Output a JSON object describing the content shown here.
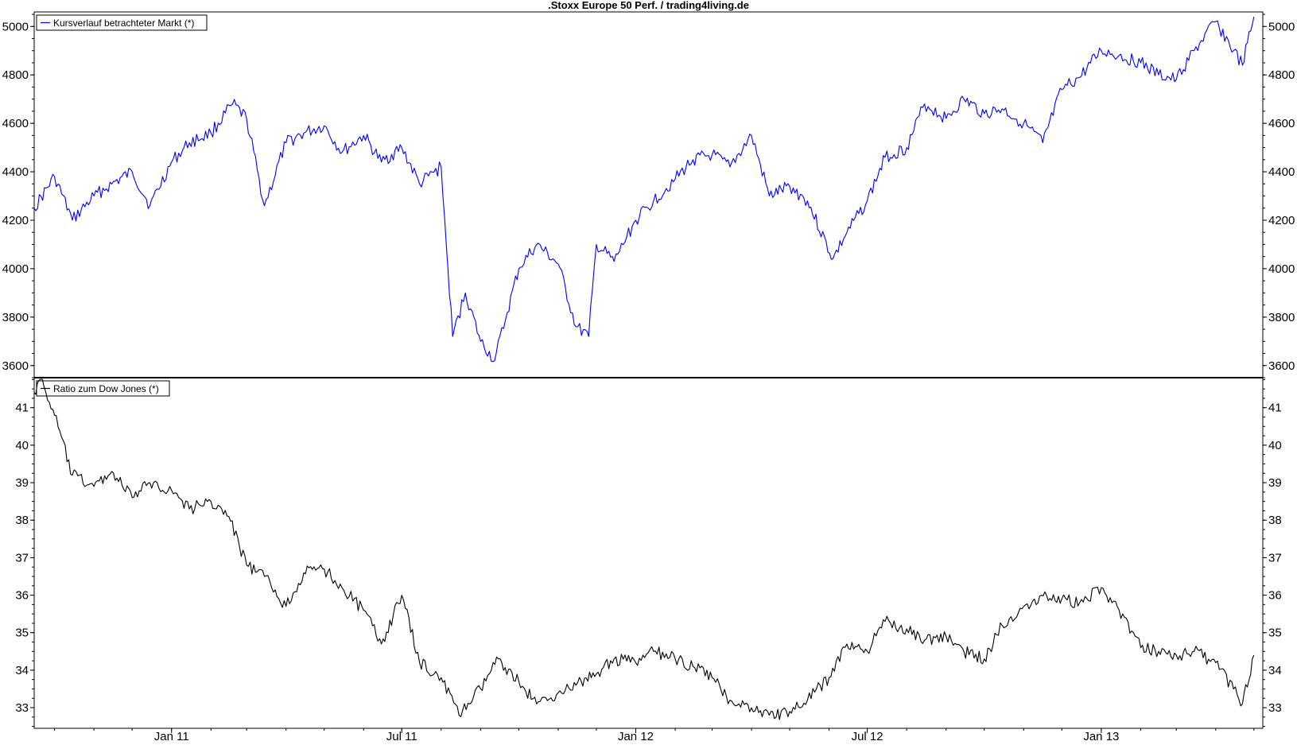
{
  "title": ".Stoxx Europe 50 Perf. / trading4living.de",
  "x_axis": {
    "tick_labels": [
      "Jan 11",
      "Jul 11",
      "Jan 12",
      "Jul 12",
      "Jan 13"
    ]
  },
  "chart_data": [
    {
      "type": "line",
      "legend": "Kursverlauf betrachteter Markt (*)",
      "legend_position": "top-left",
      "color": "#0000ff",
      "y_ticks": [
        3600,
        3800,
        4000,
        4200,
        4400,
        4600,
        4800,
        5000
      ],
      "ylim": [
        3550,
        5060
      ],
      "x": [
        "2010-09-15",
        "2010-10-01",
        "2010-10-15",
        "2010-11-01",
        "2010-11-15",
        "2010-12-01",
        "2010-12-15",
        "2011-01-01",
        "2011-01-15",
        "2011-02-01",
        "2011-02-18",
        "2011-03-01",
        "2011-03-15",
        "2011-04-01",
        "2011-04-15",
        "2011-05-01",
        "2011-05-15",
        "2011-06-01",
        "2011-06-15",
        "2011-07-01",
        "2011-07-15",
        "2011-08-01",
        "2011-08-05",
        "2011-08-10",
        "2011-08-20",
        "2011-09-01",
        "2011-09-12",
        "2011-09-22",
        "2011-10-01",
        "2011-10-15",
        "2011-11-01",
        "2011-11-15",
        "2011-11-25",
        "2011-12-01",
        "2011-12-15",
        "2012-01-01",
        "2012-01-15",
        "2012-02-01",
        "2012-02-15",
        "2012-03-01",
        "2012-03-15",
        "2012-04-01",
        "2012-04-15",
        "2012-05-01",
        "2012-05-15",
        "2012-06-04",
        "2012-06-15",
        "2012-07-01",
        "2012-07-15",
        "2012-08-01",
        "2012-08-15",
        "2012-09-01",
        "2012-09-15",
        "2012-10-01",
        "2012-10-15",
        "2012-11-01",
        "2012-11-16",
        "2012-12-01",
        "2012-12-15",
        "2013-01-01",
        "2013-01-15",
        "2013-02-01",
        "2013-02-15",
        "2013-03-01",
        "2013-03-15",
        "2013-04-01",
        "2013-04-15",
        "2013-04-22",
        "2013-05-01"
      ],
      "y": [
        4250,
        4380,
        4200,
        4300,
        4350,
        4400,
        4260,
        4440,
        4520,
        4560,
        4680,
        4620,
        4260,
        4520,
        4560,
        4590,
        4480,
        4550,
        4440,
        4500,
        4350,
        4420,
        4100,
        3720,
        3900,
        3700,
        3620,
        3820,
        4000,
        4100,
        4020,
        3760,
        3720,
        4100,
        4030,
        4200,
        4280,
        4370,
        4450,
        4470,
        4420,
        4550,
        4300,
        4340,
        4280,
        4040,
        4150,
        4280,
        4460,
        4500,
        4680,
        4620,
        4700,
        4640,
        4660,
        4600,
        4520,
        4740,
        4790,
        4900,
        4880,
        4850,
        4800,
        4780,
        4900,
        5020,
        4900,
        4840,
        5040
      ]
    },
    {
      "type": "line",
      "legend": "Ratio zum Dow Jones (*)",
      "legend_position": "top-left",
      "color": "#000000",
      "y_ticks": [
        33,
        34,
        35,
        36,
        37,
        38,
        39,
        40,
        41
      ],
      "ylim": [
        32.45,
        41.8
      ],
      "x": [
        "2010-09-15",
        "2010-09-20",
        "2010-10-01",
        "2010-10-15",
        "2010-11-01",
        "2010-11-15",
        "2010-12-01",
        "2010-12-15",
        "2011-01-01",
        "2011-01-15",
        "2011-02-01",
        "2011-02-15",
        "2011-03-01",
        "2011-03-15",
        "2011-04-01",
        "2011-04-15",
        "2011-05-01",
        "2011-05-15",
        "2011-06-01",
        "2011-06-15",
        "2011-07-01",
        "2011-07-15",
        "2011-08-01",
        "2011-08-15",
        "2011-09-01",
        "2011-09-15",
        "2011-10-01",
        "2011-10-15",
        "2011-11-01",
        "2011-11-15",
        "2011-12-01",
        "2011-12-15",
        "2012-01-01",
        "2012-01-15",
        "2012-02-01",
        "2012-02-15",
        "2012-03-01",
        "2012-03-15",
        "2012-04-01",
        "2012-04-15",
        "2012-05-01",
        "2012-05-15",
        "2012-06-01",
        "2012-06-15",
        "2012-07-01",
        "2012-07-15",
        "2012-08-01",
        "2012-08-15",
        "2012-09-01",
        "2012-09-15",
        "2012-10-01",
        "2012-10-15",
        "2012-11-01",
        "2012-11-15",
        "2012-12-01",
        "2012-12-15",
        "2013-01-01",
        "2013-01-15",
        "2013-02-01",
        "2013-02-15",
        "2013-03-01",
        "2013-03-15",
        "2013-04-01",
        "2013-04-15",
        "2013-04-22",
        "2013-05-01"
      ],
      "y": [
        41.4,
        41.8,
        40.8,
        39.2,
        38.9,
        39.3,
        38.6,
        39.0,
        38.8,
        38.3,
        38.5,
        38.1,
        36.8,
        36.5,
        35.7,
        36.6,
        36.7,
        36.2,
        35.6,
        34.7,
        36.0,
        34.2,
        33.8,
        32.8,
        33.5,
        34.3,
        33.7,
        33.1,
        33.4,
        33.6,
        33.9,
        34.3,
        34.2,
        34.5,
        34.3,
        34.1,
        33.8,
        33.2,
        33.0,
        32.8,
        32.9,
        33.2,
        33.8,
        34.7,
        34.5,
        35.3,
        35.1,
        34.8,
        34.9,
        34.5,
        34.3,
        35.2,
        35.7,
        36.0,
        35.9,
        35.8,
        36.2,
        35.6,
        34.6,
        34.5,
        34.4,
        34.5,
        34.2,
        33.5,
        33.1,
        34.4
      ]
    }
  ]
}
